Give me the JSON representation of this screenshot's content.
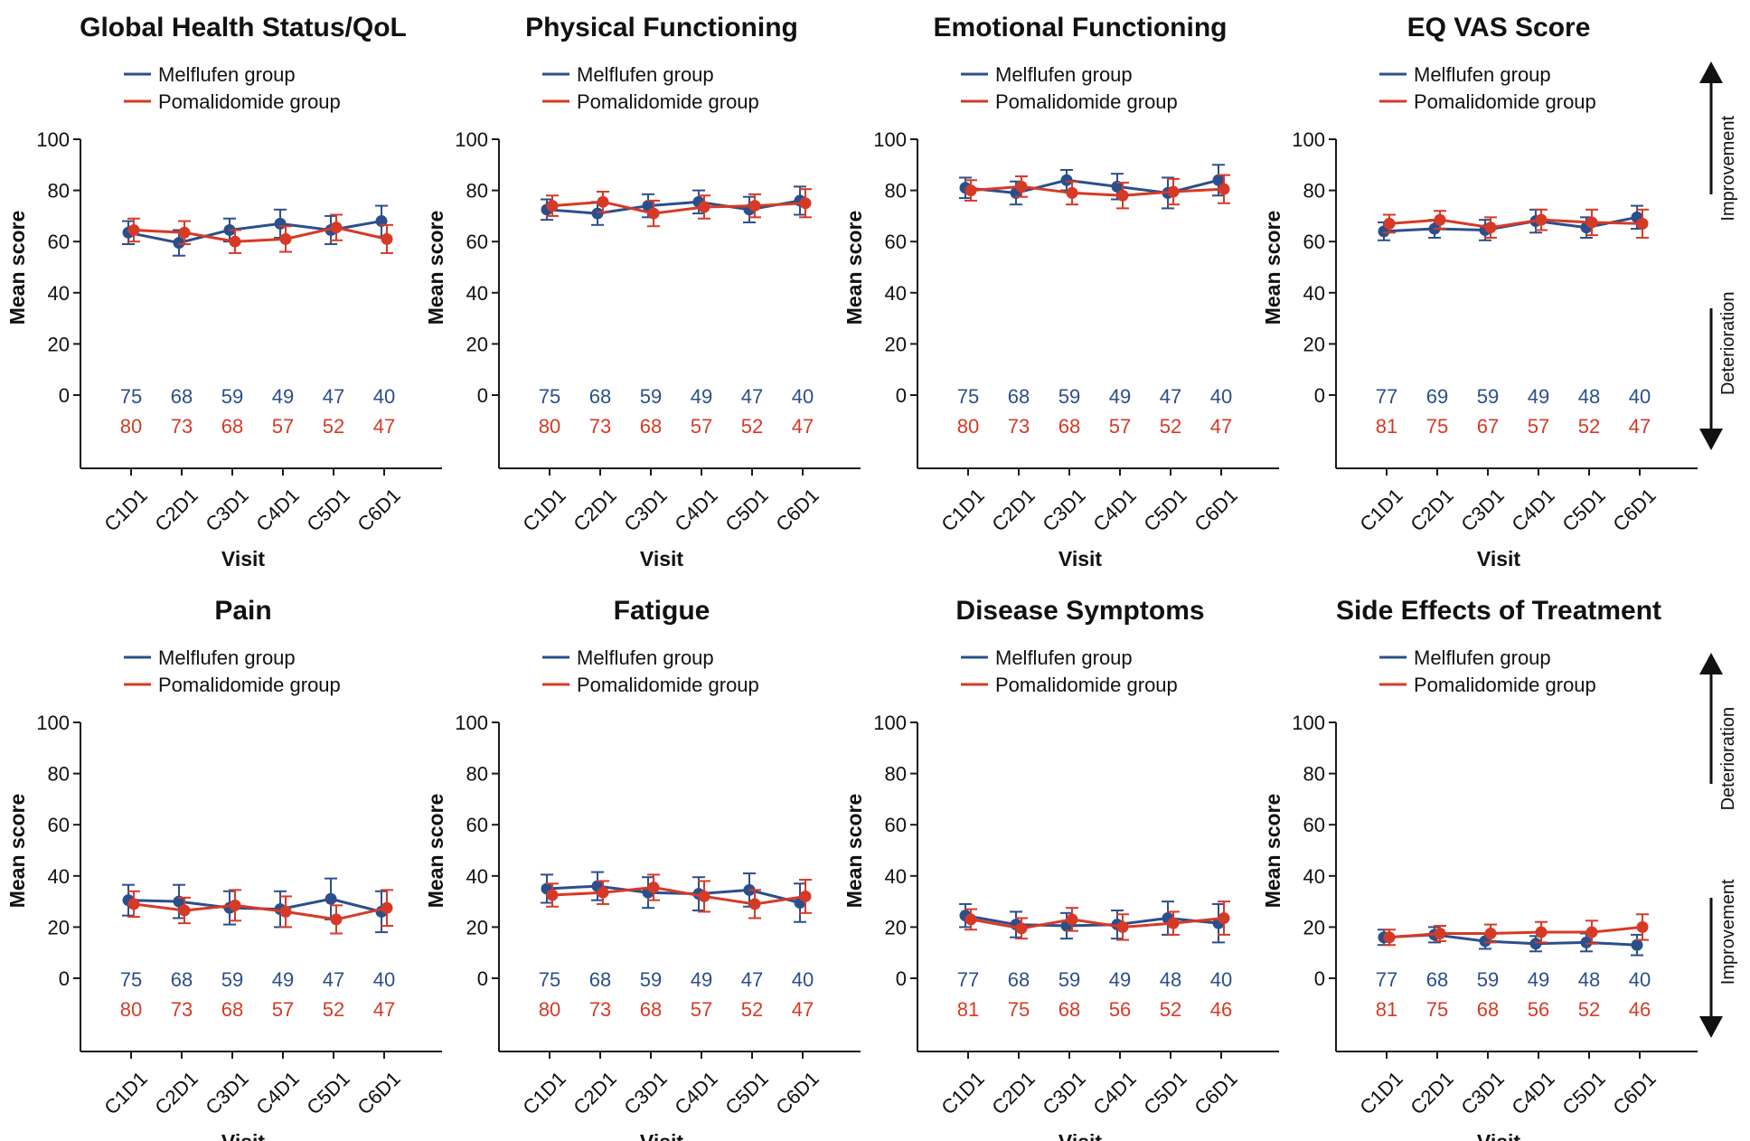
{
  "colors": {
    "melflufen": "#2b4f8c",
    "pomalidomide": "#d63a26",
    "axis": "#1a1a1a"
  },
  "legend_labels": {
    "melflufen": "Melflufen group",
    "pomalidomide": "Pomalidomide group"
  },
  "side_labels": {
    "top": [
      "Improvement",
      "Deterioration"
    ],
    "bottom": [
      "Deterioration",
      "Improvement"
    ]
  },
  "chart_data": [
    {
      "type": "line",
      "title": "Global Health Status/QoL",
      "xlabel": "Visit",
      "ylabel": "Mean score",
      "ylim": [
        0,
        100
      ],
      "yticks": [
        0,
        20,
        40,
        60,
        80,
        100
      ],
      "categories": [
        "C1D1",
        "C2D1",
        "C3D1",
        "C4D1",
        "C5D1",
        "C6D1"
      ],
      "series": [
        {
          "name": "Melflufen group",
          "values": [
            63.5,
            59.5,
            64.5,
            67,
            64.5,
            68
          ],
          "err": [
            4.5,
            5,
            4.5,
            5.5,
            5.5,
            6
          ],
          "n": [
            "75",
            "68",
            "59",
            "49",
            "47",
            "40"
          ]
        },
        {
          "name": "Pomalidomide group",
          "values": [
            64.5,
            63.5,
            60,
            61,
            65.5,
            61
          ],
          "err": [
            4.5,
            4.5,
            4.5,
            5,
            5,
            5.5
          ],
          "n": [
            "80",
            "73",
            "68",
            "57",
            "52",
            "47"
          ]
        }
      ]
    },
    {
      "type": "line",
      "title": "Physical Functioning",
      "xlabel": "Visit",
      "ylabel": "Mean score",
      "ylim": [
        0,
        100
      ],
      "yticks": [
        0,
        20,
        40,
        60,
        80,
        100
      ],
      "categories": [
        "C1D1",
        "C2D1",
        "C3D1",
        "C4D1",
        "C5D1",
        "C6D1"
      ],
      "series": [
        {
          "name": "Melflufen group",
          "values": [
            72.5,
            71,
            74,
            75.5,
            72.5,
            76
          ],
          "err": [
            4,
            4.5,
            4.5,
            4.5,
            5,
            5.5
          ],
          "n": [
            "75",
            "68",
            "59",
            "49",
            "47",
            "40"
          ]
        },
        {
          "name": "Pomalidomide group",
          "values": [
            74,
            75.5,
            71,
            73.5,
            74,
            75
          ],
          "err": [
            4,
            4,
            5,
            4.5,
            4.5,
            5.5
          ],
          "n": [
            "80",
            "73",
            "68",
            "57",
            "52",
            "47"
          ]
        }
      ]
    },
    {
      "type": "line",
      "title": "Emotional Functioning",
      "xlabel": "Visit",
      "ylabel": "Mean score",
      "ylim": [
        0,
        100
      ],
      "yticks": [
        0,
        20,
        40,
        60,
        80,
        100
      ],
      "categories": [
        "C1D1",
        "C2D1",
        "C3D1",
        "C4D1",
        "C5D1",
        "C6D1"
      ],
      "series": [
        {
          "name": "Melflufen group",
          "values": [
            81,
            79,
            84,
            81.5,
            79,
            84
          ],
          "err": [
            4,
            4.5,
            4,
            5,
            6,
            6
          ],
          "n": [
            "75",
            "68",
            "59",
            "49",
            "47",
            "40"
          ]
        },
        {
          "name": "Pomalidomide group",
          "values": [
            80,
            81.5,
            79,
            78,
            79.5,
            80.5
          ],
          "err": [
            4,
            4,
            4.5,
            5,
            5,
            5.5
          ],
          "n": [
            "80",
            "73",
            "68",
            "57",
            "52",
            "47"
          ]
        }
      ]
    },
    {
      "type": "line",
      "title": "EQ VAS Score",
      "xlabel": "Visit",
      "ylabel": "Mean score",
      "ylim": [
        0,
        100
      ],
      "yticks": [
        0,
        20,
        40,
        60,
        80,
        100
      ],
      "categories": [
        "C1D1",
        "C2D1",
        "C3D1",
        "C4D1",
        "C5D1",
        "C6D1"
      ],
      "series": [
        {
          "name": "Melflufen group",
          "values": [
            64,
            65,
            64.5,
            68,
            65.5,
            69.5
          ],
          "err": [
            3.5,
            3.5,
            4,
            4.5,
            4,
            4.5
          ],
          "n": [
            "77",
            "69",
            "59",
            "49",
            "48",
            "40"
          ]
        },
        {
          "name": "Pomalidomide group",
          "values": [
            67,
            68.5,
            65.5,
            68.5,
            67.5,
            67
          ],
          "err": [
            3.5,
            3.5,
            4,
            4,
            5,
            5.5
          ],
          "n": [
            "81",
            "75",
            "67",
            "57",
            "52",
            "47"
          ]
        }
      ]
    },
    {
      "type": "line",
      "title": "Pain",
      "xlabel": "Visit",
      "ylabel": "Mean score",
      "ylim": [
        0,
        100
      ],
      "yticks": [
        0,
        20,
        40,
        60,
        80,
        100
      ],
      "categories": [
        "C1D1",
        "C2D1",
        "C3D1",
        "C4D1",
        "C5D1",
        "C6D1"
      ],
      "series": [
        {
          "name": "Melflufen group",
          "values": [
            30.5,
            30,
            27.5,
            27,
            31,
            26
          ],
          "err": [
            6,
            6.5,
            6.5,
            7,
            8,
            8
          ],
          "n": [
            "75",
            "68",
            "59",
            "49",
            "47",
            "40"
          ]
        },
        {
          "name": "Pomalidomide group",
          "values": [
            29,
            26.5,
            28.5,
            26,
            23,
            27.5
          ],
          "err": [
            5,
            5,
            6,
            6,
            5.5,
            7
          ],
          "n": [
            "80",
            "73",
            "68",
            "57",
            "52",
            "47"
          ]
        }
      ]
    },
    {
      "type": "line",
      "title": "Fatigue",
      "xlabel": "Visit",
      "ylabel": "Mean score",
      "ylim": [
        0,
        100
      ],
      "yticks": [
        0,
        20,
        40,
        60,
        80,
        100
      ],
      "categories": [
        "C1D1",
        "C2D1",
        "C3D1",
        "C4D1",
        "C5D1",
        "C6D1"
      ],
      "series": [
        {
          "name": "Melflufen group",
          "values": [
            35,
            36,
            33.5,
            33,
            34.5,
            29.5
          ],
          "err": [
            5.5,
            5.5,
            6,
            6.5,
            6.5,
            7.5
          ],
          "n": [
            "75",
            "68",
            "59",
            "49",
            "47",
            "40"
          ]
        },
        {
          "name": "Pomalidomide group",
          "values": [
            32.5,
            33.5,
            35.5,
            32,
            29,
            32
          ],
          "err": [
            4.5,
            4.5,
            5,
            6,
            5.5,
            6.5
          ],
          "n": [
            "80",
            "73",
            "68",
            "57",
            "52",
            "47"
          ]
        }
      ]
    },
    {
      "type": "line",
      "title": "Disease Symptoms",
      "xlabel": "Visit",
      "ylabel": "Mean score",
      "ylim": [
        0,
        100
      ],
      "yticks": [
        0,
        20,
        40,
        60,
        80,
        100
      ],
      "categories": [
        "C1D1",
        "C2D1",
        "C3D1",
        "C4D1",
        "C5D1",
        "C6D1"
      ],
      "series": [
        {
          "name": "Melflufen group",
          "values": [
            24.5,
            21,
            20.5,
            21,
            23.5,
            21.5
          ],
          "err": [
            4.5,
            5,
            5,
            5.5,
            6.5,
            7.5
          ],
          "n": [
            "77",
            "68",
            "59",
            "49",
            "48",
            "40"
          ]
        },
        {
          "name": "Pomalidomide group",
          "values": [
            23,
            19.5,
            23,
            20,
            21.5,
            23.5
          ],
          "err": [
            4,
            4,
            4.5,
            5,
            4.5,
            6.5
          ],
          "n": [
            "81",
            "75",
            "68",
            "56",
            "52",
            "46"
          ]
        }
      ]
    },
    {
      "type": "line",
      "title": "Side Effects of Treatment",
      "xlabel": "Visit",
      "ylabel": "Mean score",
      "ylim": [
        0,
        100
      ],
      "yticks": [
        0,
        20,
        40,
        60,
        80,
        100
      ],
      "categories": [
        "C1D1",
        "C2D1",
        "C3D1",
        "C4D1",
        "C5D1",
        "C6D1"
      ],
      "series": [
        {
          "name": "Melflufen group",
          "values": [
            16,
            17,
            14.5,
            13.5,
            14,
            13
          ],
          "err": [
            3,
            3,
            3,
            3,
            3.5,
            4
          ],
          "n": [
            "77",
            "68",
            "59",
            "49",
            "48",
            "40"
          ]
        },
        {
          "name": "Pomalidomide group",
          "values": [
            16,
            17.5,
            17.5,
            18,
            18,
            20
          ],
          "err": [
            3,
            3,
            3.5,
            4,
            4.5,
            5
          ],
          "n": [
            "81",
            "75",
            "68",
            "56",
            "52",
            "46"
          ]
        }
      ]
    }
  ]
}
